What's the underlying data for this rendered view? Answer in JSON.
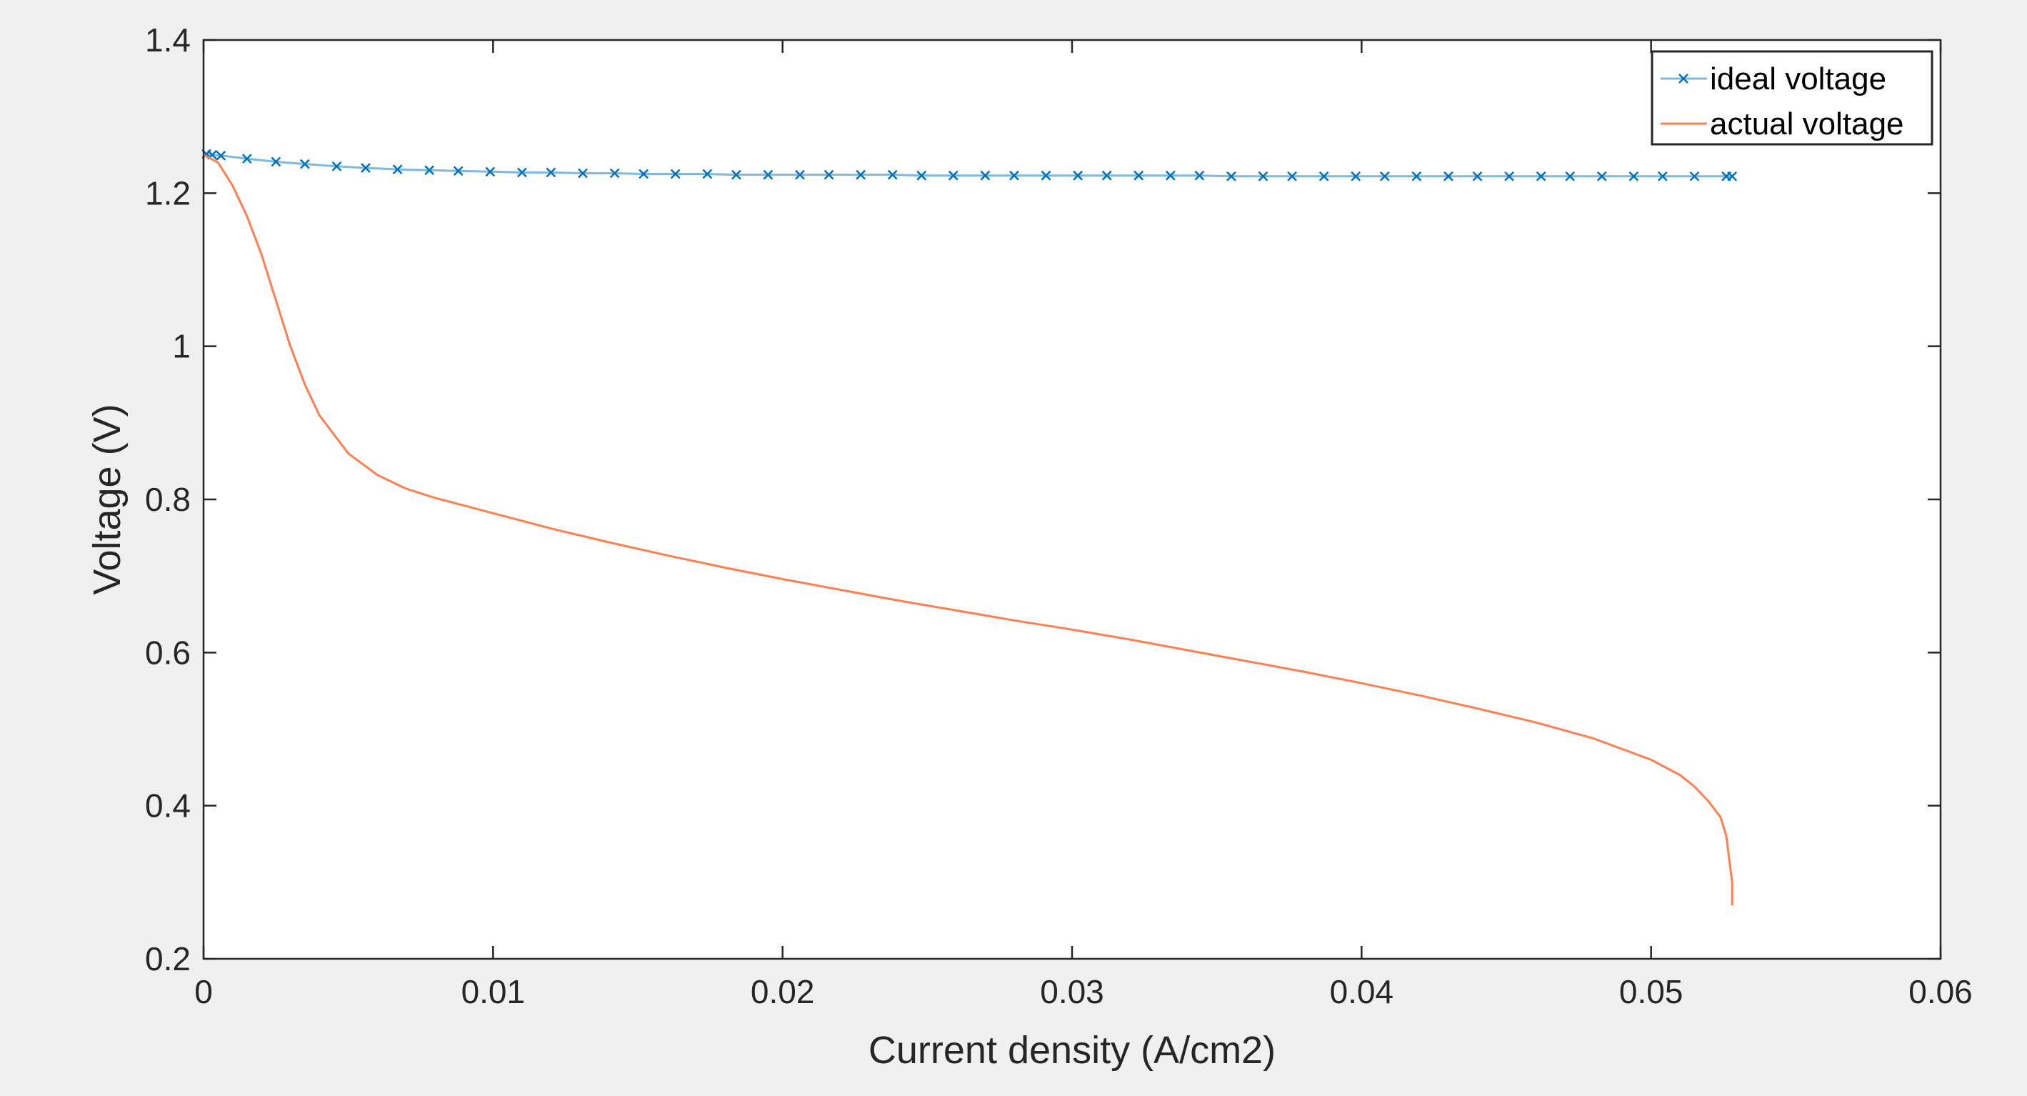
{
  "chart_data": {
    "type": "line",
    "title": "",
    "xlabel": "Current density (A/cm2)",
    "ylabel": "Voltage (V)",
    "xlim": [
      0,
      0.06
    ],
    "ylim": [
      0.2,
      1.4
    ],
    "x_ticks": [
      0,
      0.01,
      0.02,
      0.03,
      0.04,
      0.05,
      0.06
    ],
    "x_tick_labels": [
      "0",
      "0.01",
      "0.02",
      "0.03",
      "0.04",
      "0.05",
      "0.06"
    ],
    "y_ticks": [
      0.2,
      0.4,
      0.6,
      0.8,
      1.0,
      1.2,
      1.4
    ],
    "y_tick_labels": [
      "0.2",
      "0.4",
      "0.6",
      "0.8",
      "1",
      "1.2",
      "1.4"
    ],
    "grid": false,
    "legend_position": "top-right",
    "series": [
      {
        "name": "ideal voltage",
        "color": "#0072bd",
        "line_color": "#7fb8e0",
        "marker": "x",
        "points": [
          [
            0.0001,
            1.251
          ],
          [
            0.0003,
            1.25
          ],
          [
            0.0006,
            1.249
          ],
          [
            0.0015,
            1.245
          ],
          [
            0.0025,
            1.241
          ],
          [
            0.0035,
            1.238
          ],
          [
            0.0046,
            1.235
          ],
          [
            0.0056,
            1.233
          ],
          [
            0.0067,
            1.231
          ],
          [
            0.0078,
            1.23
          ],
          [
            0.0088,
            1.229
          ],
          [
            0.0099,
            1.228
          ],
          [
            0.011,
            1.227
          ],
          [
            0.012,
            1.227
          ],
          [
            0.0131,
            1.226
          ],
          [
            0.0142,
            1.226
          ],
          [
            0.0152,
            1.225
          ],
          [
            0.0163,
            1.225
          ],
          [
            0.0174,
            1.225
          ],
          [
            0.0184,
            1.224
          ],
          [
            0.0195,
            1.224
          ],
          [
            0.0206,
            1.224
          ],
          [
            0.0216,
            1.224
          ],
          [
            0.0227,
            1.224
          ],
          [
            0.0238,
            1.224
          ],
          [
            0.0248,
            1.223
          ],
          [
            0.0259,
            1.223
          ],
          [
            0.027,
            1.223
          ],
          [
            0.028,
            1.223
          ],
          [
            0.0291,
            1.223
          ],
          [
            0.0302,
            1.223
          ],
          [
            0.0312,
            1.223
          ],
          [
            0.0323,
            1.223
          ],
          [
            0.0334,
            1.223
          ],
          [
            0.0344,
            1.223
          ],
          [
            0.0355,
            1.222
          ],
          [
            0.0366,
            1.222
          ],
          [
            0.0376,
            1.222
          ],
          [
            0.0387,
            1.222
          ],
          [
            0.0398,
            1.222
          ],
          [
            0.0408,
            1.222
          ],
          [
            0.0419,
            1.222
          ],
          [
            0.043,
            1.222
          ],
          [
            0.044,
            1.222
          ],
          [
            0.0451,
            1.222
          ],
          [
            0.0462,
            1.222
          ],
          [
            0.0472,
            1.222
          ],
          [
            0.0483,
            1.222
          ],
          [
            0.0494,
            1.222
          ],
          [
            0.0504,
            1.222
          ],
          [
            0.0515,
            1.222
          ],
          [
            0.0526,
            1.222
          ],
          [
            0.0528,
            1.222
          ]
        ]
      },
      {
        "name": "actual voltage",
        "color": "#ff7f50",
        "line_color": "#ff7f50",
        "marker": "none",
        "points": [
          [
            0.0,
            1.25
          ],
          [
            0.0005,
            1.24
          ],
          [
            0.001,
            1.21
          ],
          [
            0.0015,
            1.17
          ],
          [
            0.002,
            1.12
          ],
          [
            0.0025,
            1.06
          ],
          [
            0.003,
            1.0
          ],
          [
            0.0035,
            0.95
          ],
          [
            0.004,
            0.91
          ],
          [
            0.005,
            0.86
          ],
          [
            0.006,
            0.832
          ],
          [
            0.007,
            0.814
          ],
          [
            0.008,
            0.802
          ],
          [
            0.009,
            0.792
          ],
          [
            0.01,
            0.782
          ],
          [
            0.012,
            0.762
          ],
          [
            0.014,
            0.744
          ],
          [
            0.016,
            0.727
          ],
          [
            0.018,
            0.711
          ],
          [
            0.02,
            0.696
          ],
          [
            0.022,
            0.682
          ],
          [
            0.024,
            0.668
          ],
          [
            0.026,
            0.655
          ],
          [
            0.028,
            0.642
          ],
          [
            0.03,
            0.63
          ],
          [
            0.032,
            0.617
          ],
          [
            0.034,
            0.603
          ],
          [
            0.036,
            0.589
          ],
          [
            0.038,
            0.575
          ],
          [
            0.04,
            0.56
          ],
          [
            0.042,
            0.544
          ],
          [
            0.044,
            0.527
          ],
          [
            0.046,
            0.509
          ],
          [
            0.048,
            0.488
          ],
          [
            0.05,
            0.46
          ],
          [
            0.051,
            0.44
          ],
          [
            0.0515,
            0.425
          ],
          [
            0.052,
            0.405
          ],
          [
            0.0524,
            0.385
          ],
          [
            0.0526,
            0.36
          ],
          [
            0.0527,
            0.33
          ],
          [
            0.0528,
            0.3
          ],
          [
            0.0528,
            0.27
          ]
        ]
      }
    ]
  }
}
